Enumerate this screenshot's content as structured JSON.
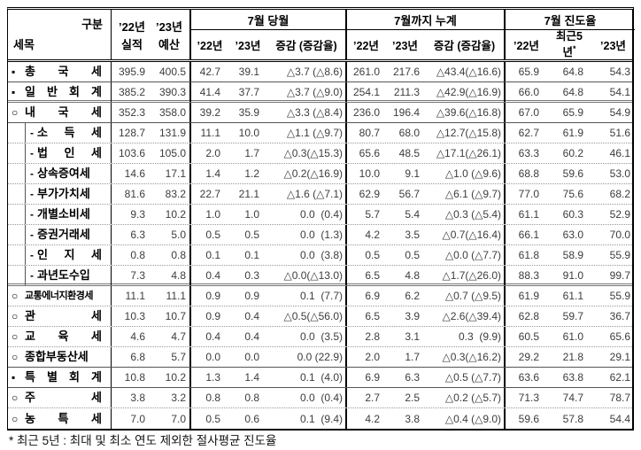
{
  "header": {
    "corner": {
      "top_right": "구분",
      "bottom_left": "세목"
    },
    "year_cols": {
      "y22": "’22년",
      "y23": "’23년",
      "actual": "실적",
      "budget": "예산"
    },
    "groups": [
      {
        "label": "7월 당월",
        "sub": [
          "’22년",
          "’23년",
          "증감 (증감율)"
        ]
      },
      {
        "label": "7월까지 누계",
        "sub": [
          "’22년",
          "’23년",
          "증감 (증감율)"
        ]
      },
      {
        "label": "7월 진도율",
        "sub": [
          "’22년",
          "최근5년*",
          "’23년"
        ]
      }
    ],
    "recent5": {
      "line1": "최근5",
      "line2": "년",
      "sup": "*"
    }
  },
  "columns": [
    "’22년 실적",
    "’23년 예산",
    "7월 당월 ’22년",
    "7월 당월 ’23년",
    "7월 당월 증감(증감율)",
    "누계 ’22년",
    "누계 ’23년",
    "누계 증감(증감율)",
    "진도율 ’22년",
    "진도율 최근5년",
    "진도율 ’23년"
  ],
  "rows": [
    {
      "bullet": "▪",
      "name": "총 국 세",
      "indent": false,
      "compressed": false,
      "border": "solid",
      "values": [
        "395.9",
        "400.5",
        "42.7",
        "39.1",
        "△3.7 (△8.6)",
        "261.0",
        "217.6",
        "△43.4(△16.6)",
        "65.9",
        "64.8",
        "54.3"
      ]
    },
    {
      "bullet": "▪",
      "name": "일 반 회 계",
      "indent": false,
      "compressed": false,
      "border": "double",
      "values": [
        "385.2",
        "390.3",
        "41.4",
        "37.7",
        "△3.7 (△9.0)",
        "254.1",
        "211.3",
        "△42.9(△16.9)",
        "66.0",
        "64.8",
        "54.1"
      ]
    },
    {
      "bullet": "○",
      "name": "내 국 세",
      "indent": false,
      "compressed": false,
      "border": "solid",
      "values": [
        "352.3",
        "358.0",
        "39.2",
        "35.9",
        "△3.3 (△8.4)",
        "236.0",
        "196.4",
        "△39.6(△16.8)",
        "67.0",
        "65.9",
        "54.9"
      ]
    },
    {
      "bullet": "-",
      "name": "소 득 세",
      "indent": true,
      "compressed": false,
      "border": "dotted",
      "values": [
        "128.7",
        "131.9",
        "11.1",
        "10.0",
        "△1.1 (△9.7)",
        "80.7",
        "68.0",
        "△12.7(△15.8)",
        "62.7",
        "61.9",
        "51.6"
      ]
    },
    {
      "bullet": "-",
      "name": "법 인 세",
      "indent": true,
      "compressed": false,
      "border": "dotted",
      "values": [
        "103.6",
        "105.0",
        "2.0",
        "1.7",
        "△0.3(△15.3)",
        "65.6",
        "48.5",
        "△17.1(△26.1)",
        "63.3",
        "60.2",
        "46.1"
      ]
    },
    {
      "bullet": "-",
      "name": "상속증여세",
      "indent": true,
      "compressed": false,
      "border": "dotted",
      "values": [
        "14.6",
        "17.1",
        "1.4",
        "1.2",
        "△0.2(△16.9)",
        "10.0",
        "9.1",
        "△1.0 (△9.6)",
        "68.8",
        "59.6",
        "53.0"
      ]
    },
    {
      "bullet": "-",
      "name": "부가가치세",
      "indent": true,
      "compressed": false,
      "border": "dotted",
      "values": [
        "81.6",
        "83.2",
        "22.7",
        "21.1",
        "△1.6 (△7.1)",
        "62.9",
        "56.7",
        "△6.1 (△9.7)",
        "77.0",
        "75.6",
        "68.2"
      ]
    },
    {
      "bullet": "-",
      "name": "개별소비세",
      "indent": true,
      "compressed": false,
      "border": "dotted",
      "values": [
        "9.3",
        "10.2",
        "1.0",
        "1.0",
        "0.0  (0.4)",
        "5.7",
        "5.4",
        "△0.3 (△5.4)",
        "61.1",
        "60.3",
        "52.9"
      ]
    },
    {
      "bullet": "-",
      "name": "증권거래세",
      "indent": true,
      "compressed": false,
      "border": "dotted",
      "values": [
        "6.3",
        "5.0",
        "0.5",
        "0.5",
        "0.0  (1.3)",
        "4.2",
        "3.5",
        "△0.7(△16.4)",
        "66.1",
        "63.0",
        "70.0"
      ]
    },
    {
      "bullet": "-",
      "name": "인 지 세",
      "indent": true,
      "compressed": false,
      "border": "dotted",
      "values": [
        "0.8",
        "0.8",
        "0.1",
        "0.1",
        "0.0  (3.8)",
        "0.5",
        "0.5",
        "△0.0 (△7.7)",
        "61.8",
        "58.9",
        "55.9"
      ]
    },
    {
      "bullet": "-",
      "name": "과년도수입",
      "indent": true,
      "compressed": false,
      "border": "double",
      "values": [
        "7.3",
        "4.8",
        "0.4",
        "0.3",
        "△0.0(△13.0)",
        "6.5",
        "4.8",
        "△1.7(△26.0)",
        "88.3",
        "91.0",
        "99.7"
      ]
    },
    {
      "bullet": "○",
      "name": "교통에너지환경세",
      "indent": false,
      "compressed": true,
      "border": "dotted",
      "values": [
        "11.1",
        "11.1",
        "0.9",
        "0.9",
        "0.1  (7.7)",
        "6.9",
        "6.2",
        "△0.7 (△9.5)",
        "61.9",
        "61.1",
        "55.9"
      ]
    },
    {
      "bullet": "○",
      "name": "관 세",
      "indent": false,
      "compressed": false,
      "border": "dotted",
      "values": [
        "10.3",
        "10.7",
        "0.9",
        "0.4",
        "△0.5(△56.0)",
        "6.5",
        "3.9",
        "△2.6(△39.4)",
        "62.8",
        "59.7",
        "36.7"
      ]
    },
    {
      "bullet": "○",
      "name": "교 육 세",
      "indent": false,
      "compressed": false,
      "border": "dotted",
      "values": [
        "4.6",
        "4.7",
        "0.4",
        "0.4",
        "0.0  (3.5)",
        "2.8",
        "3.1",
        "0.3  (9.9)",
        "60.5",
        "61.0",
        "65.6"
      ]
    },
    {
      "bullet": "○",
      "name": "종합부동산세",
      "indent": false,
      "compressed": false,
      "border": "solid",
      "values": [
        "6.8",
        "5.7",
        "0.0",
        "0.0",
        "0.0 (22.9)",
        "2.0",
        "1.7",
        "△0.3(△16.2)",
        "29.2",
        "21.8",
        "29.1"
      ]
    },
    {
      "bullet": "▪",
      "name": "특 별 회 계",
      "indent": false,
      "compressed": false,
      "border": "solid",
      "values": [
        "10.8",
        "10.2",
        "1.3",
        "1.4",
        "0.1  (4.0)",
        "6.9",
        "6.3",
        "△0.5 (△7.7)",
        "63.6",
        "63.8",
        "62.1"
      ]
    },
    {
      "bullet": "○",
      "name": "주 세",
      "indent": false,
      "compressed": false,
      "border": "dotted",
      "values": [
        "3.8",
        "3.2",
        "0.8",
        "0.8",
        "0.0  (0.4)",
        "2.7",
        "2.5",
        "△0.2 (△5.7)",
        "71.3",
        "74.7",
        "78.7"
      ]
    },
    {
      "bullet": "○",
      "name": "농 특 세",
      "indent": false,
      "compressed": false,
      "border": "none",
      "values": [
        "7.0",
        "7.0",
        "0.5",
        "0.6",
        "0.1  (9.4)",
        "4.2",
        "3.8",
        "△0.4 (△9.0)",
        "59.6",
        "57.8",
        "54.4"
      ]
    }
  ],
  "footnote": "* 최근 5년 : 최대 및 최소 연도 제외한 절사평균 진도율"
}
